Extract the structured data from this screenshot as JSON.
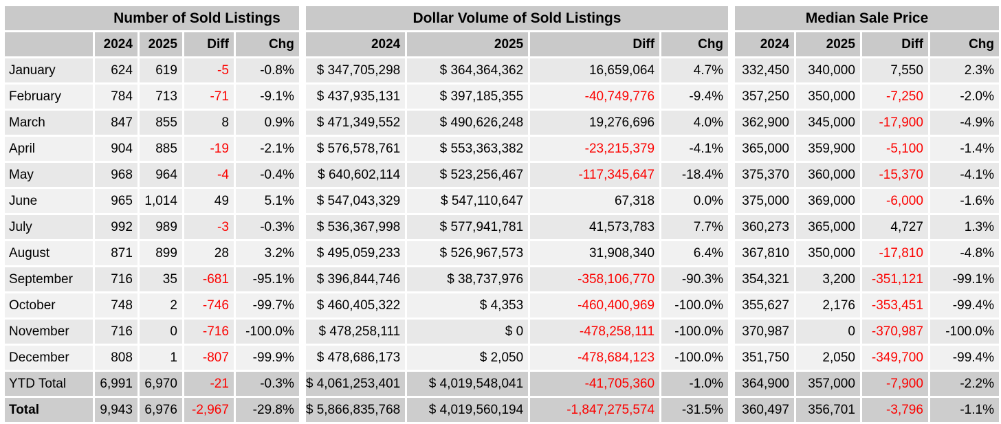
{
  "colors": {
    "background": "#ffffff",
    "header_bg": "#c9c9c9",
    "row_odd_bg": "#e8e8e8",
    "row_even_bg": "#f1f1f1",
    "total_row_bg": "#cdcdcd",
    "text": "#000000",
    "negative_text": "#fb0200"
  },
  "chart_data": {
    "type": "table",
    "sections": [
      "Number of Sold Listings",
      "Dollar Volume of Sold Listings",
      "Median Sale Price"
    ],
    "column_headers": [
      "2024",
      "2025",
      "Diff",
      "Chg"
    ],
    "diff_column_indices": [
      2,
      6,
      10
    ],
    "rows": [
      {
        "label": "January",
        "row_type": "month",
        "values": [
          "624",
          "619",
          "-5",
          "-0.8%",
          "$ 347,705,298",
          "$ 364,364,362",
          "16,659,064",
          "4.7%",
          "332,450",
          "340,000",
          "7,550",
          "2.3%"
        ]
      },
      {
        "label": "February",
        "row_type": "month",
        "values": [
          "784",
          "713",
          "-71",
          "-9.1%",
          "$ 437,935,131",
          "$ 397,185,355",
          "-40,749,776",
          "-9.4%",
          "357,250",
          "350,000",
          "-7,250",
          "-2.0%"
        ]
      },
      {
        "label": "March",
        "row_type": "month",
        "values": [
          "847",
          "855",
          "8",
          "0.9%",
          "$ 471,349,552",
          "$ 490,626,248",
          "19,276,696",
          "4.0%",
          "362,900",
          "345,000",
          "-17,900",
          "-4.9%"
        ]
      },
      {
        "label": "April",
        "row_type": "month",
        "values": [
          "904",
          "885",
          "-19",
          "-2.1%",
          "$ 576,578,761",
          "$ 553,363,382",
          "-23,215,379",
          "-4.1%",
          "365,000",
          "359,900",
          "-5,100",
          "-1.4%"
        ]
      },
      {
        "label": "May",
        "row_type": "month",
        "values": [
          "968",
          "964",
          "-4",
          "-0.4%",
          "$ 640,602,114",
          "$ 523,256,467",
          "-117,345,647",
          "-18.4%",
          "375,370",
          "360,000",
          "-15,370",
          "-4.1%"
        ]
      },
      {
        "label": "June",
        "row_type": "month",
        "values": [
          "965",
          "1,014",
          "49",
          "5.1%",
          "$ 547,043,329",
          "$ 547,110,647",
          "67,318",
          "0.0%",
          "375,000",
          "369,000",
          "-6,000",
          "-1.6%"
        ]
      },
      {
        "label": "July",
        "row_type": "month",
        "values": [
          "992",
          "989",
          "-3",
          "-0.3%",
          "$ 536,367,998",
          "$ 577,941,781",
          "41,573,783",
          "7.7%",
          "360,273",
          "365,000",
          "4,727",
          "1.3%"
        ]
      },
      {
        "label": "August",
        "row_type": "month",
        "values": [
          "871",
          "899",
          "28",
          "3.2%",
          "$ 495,059,233",
          "$ 526,967,573",
          "31,908,340",
          "6.4%",
          "367,810",
          "350,000",
          "-17,810",
          "-4.8%"
        ]
      },
      {
        "label": "September",
        "row_type": "month",
        "values": [
          "716",
          "35",
          "-681",
          "-95.1%",
          "$ 396,844,746",
          "$ 38,737,976",
          "-358,106,770",
          "-90.3%",
          "354,321",
          "3,200",
          "-351,121",
          "-99.1%"
        ]
      },
      {
        "label": "October",
        "row_type": "month",
        "values": [
          "748",
          "2",
          "-746",
          "-99.7%",
          "$ 460,405,322",
          "$ 4,353",
          "-460,400,969",
          "-100.0%",
          "355,627",
          "2,176",
          "-353,451",
          "-99.4%"
        ]
      },
      {
        "label": "November",
        "row_type": "month",
        "values": [
          "716",
          "0",
          "-716",
          "-100.0%",
          "$ 478,258,111",
          "$ 0",
          "-478,258,111",
          "-100.0%",
          "370,987",
          "0",
          "-370,987",
          "-100.0%"
        ]
      },
      {
        "label": "December",
        "row_type": "month",
        "values": [
          "808",
          "1",
          "-807",
          "-99.9%",
          "$ 478,686,173",
          "$ 2,050",
          "-478,684,123",
          "-100.0%",
          "351,750",
          "2,050",
          "-349,700",
          "-99.4%"
        ]
      },
      {
        "label": "YTD Total",
        "row_type": "total",
        "values": [
          "6,991",
          "6,970",
          "-21",
          "-0.3%",
          "$ 4,061,253,401",
          "$ 4,019,548,041",
          "-41,705,360",
          "-1.0%",
          "364,900",
          "357,000",
          "-7,900",
          "-2.2%"
        ]
      },
      {
        "label": "Total",
        "row_type": "total",
        "bold_label": true,
        "values": [
          "9,943",
          "6,976",
          "-2,967",
          "-29.8%",
          "$ 5,866,835,768",
          "$ 4,019,560,194",
          "-1,847,275,574",
          "-31.5%",
          "360,497",
          "356,701",
          "-3,796",
          "-1.1%"
        ]
      }
    ]
  }
}
